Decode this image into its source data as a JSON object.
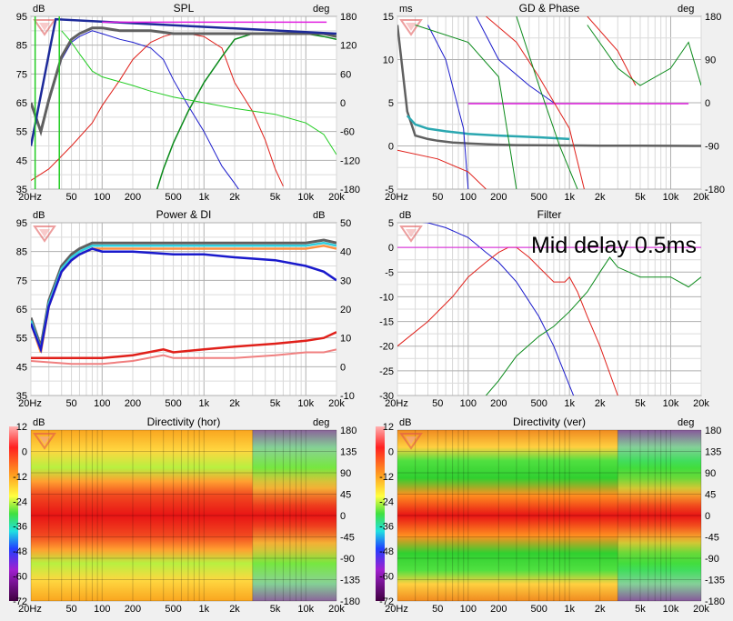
{
  "annotation": "Mid delay 0.5ms",
  "x_ticks": [
    {
      "f": 20,
      "label": "20Hz"
    },
    {
      "f": 50,
      "label": "50"
    },
    {
      "f": 100,
      "label": "100"
    },
    {
      "f": 200,
      "label": "200"
    },
    {
      "f": 500,
      "label": "500"
    },
    {
      "f": 1000,
      "label": "1k"
    },
    {
      "f": 2000,
      "label": "2k"
    },
    {
      "f": 5000,
      "label": "5k"
    },
    {
      "f": 10000,
      "label": "10k"
    },
    {
      "f": 20000,
      "label": "20k"
    }
  ],
  "colors": {
    "spl_woofer": "#1a1acc",
    "spl_mid": "#e0201a",
    "spl_tweeter": "#0a8a1a",
    "spl_sum": "#606060",
    "spl_phase": "#22cc22",
    "di": "#e0201a",
    "gd": "#2aa7b0",
    "marker": "#e020e0"
  },
  "charts": [
    {
      "id": "spl",
      "title": "SPL",
      "lunit": "dB",
      "runit": "deg",
      "x": [
        20,
        20000
      ],
      "ylim": [
        35,
        95
      ],
      "yticks": [
        "95",
        "85",
        "75",
        "65",
        "55",
        "45",
        "35"
      ],
      "rticks": [
        "180",
        "120",
        "60",
        "0",
        "-60",
        "-120",
        "-180"
      ]
    },
    {
      "id": "gd",
      "title": "GD & Phase",
      "lunit": "ms",
      "runit": "deg",
      "x": [
        20,
        20000
      ],
      "ylim": [
        -5,
        15
      ],
      "yticks": [
        "15",
        "10",
        "5",
        "0",
        "-5"
      ],
      "rticks": [
        "180",
        "90",
        "0",
        "-90",
        "-180"
      ]
    },
    {
      "id": "power",
      "title": "Power & DI",
      "lunit": "dB",
      "runit": "dB",
      "x": [
        20,
        20000
      ],
      "ylim": [
        35,
        95
      ],
      "yticks": [
        "95",
        "85",
        "75",
        "65",
        "55",
        "45",
        "35"
      ],
      "rticks": [
        "50",
        "40",
        "30",
        "20",
        "10",
        "0",
        "-10"
      ]
    },
    {
      "id": "filter",
      "title": "Filter",
      "lunit": "dB",
      "runit": "",
      "x": [
        20,
        20000
      ],
      "ylim": [
        -30,
        5
      ],
      "yticks": [
        "5",
        "0",
        "-5",
        "-10",
        "-15",
        "-20",
        "-25",
        "-30"
      ],
      "rticks": []
    },
    {
      "id": "dirh",
      "title": "Directivity (hor)",
      "lunit": "dB",
      "runit": "deg",
      "x": [
        20,
        20000
      ],
      "ylim": [
        -180,
        180
      ],
      "yticks": [],
      "rticks": [
        "180",
        "135",
        "90",
        "45",
        "0",
        "-45",
        "-90",
        "-135",
        "-180"
      ]
    },
    {
      "id": "dirv",
      "title": "Directivity (ver)",
      "lunit": "dB",
      "runit": "deg",
      "x": [
        20,
        20000
      ],
      "ylim": [
        -180,
        180
      ],
      "yticks": [],
      "rticks": [
        "180",
        "135",
        "90",
        "45",
        "0",
        "-45",
        "-90",
        "-135",
        "-180"
      ]
    }
  ],
  "colorbar": {
    "labels": [
      "12",
      "0",
      "-12",
      "-24",
      "-36",
      "-48",
      "-60",
      "-72"
    ]
  },
  "chart_data": [
    {
      "type": "line",
      "title": "SPL",
      "ylabel": "dB",
      "y2label": "deg",
      "xscale": "log",
      "xlim": [
        20,
        20000
      ],
      "ylim": [
        35,
        95
      ],
      "y2lim": [
        -180,
        180
      ],
      "series": [
        {
          "x": [
            20,
            25,
            30,
            40,
            50,
            60,
            80,
            100,
            150,
            200,
            300,
            400,
            500,
            700,
            1000,
            1500,
            2000,
            3000
          ],
          "y": [
            65,
            55,
            65,
            80,
            86,
            88,
            90,
            89,
            87,
            86,
            84,
            80,
            73,
            64,
            55,
            43,
            37,
            28
          ]
        },
        {
          "x": [
            20,
            30,
            50,
            80,
            100,
            150,
            200,
            300,
            400,
            500,
            700,
            1000,
            1500,
            2000,
            3000,
            4000,
            5000,
            6000
          ],
          "y": [
            38,
            42,
            50,
            58,
            64,
            73,
            80,
            86,
            88,
            89,
            89,
            88,
            84,
            72,
            62,
            52,
            42,
            36
          ]
        },
        {
          "x": [
            300,
            400,
            500,
            700,
            1000,
            1500,
            2000,
            3000,
            5000,
            10000,
            15000,
            20000
          ],
          "y": [
            28,
            42,
            51,
            62,
            72,
            81,
            87,
            89,
            89,
            89,
            88,
            87
          ]
        },
        {
          "x": [
            20,
            25,
            30,
            40,
            50,
            60,
            80,
            100,
            150,
            200,
            300,
            500,
            1000,
            2000,
            5000,
            10000,
            15000,
            20000
          ],
          "y": [
            65,
            55,
            66,
            81,
            87,
            89,
            91,
            91,
            90,
            90,
            90,
            89,
            89,
            89,
            89,
            89,
            89,
            88
          ]
        },
        {
          "x": [
            40,
            50,
            60,
            80,
            100,
            200,
            300,
            500,
            1000,
            2000,
            5000,
            10000,
            15000,
            20000
          ],
          "y": [
            90,
            86,
            82,
            76,
            74,
            71,
            69,
            67,
            65,
            63,
            61,
            58,
            54,
            47
          ]
        }
      ]
    },
    {
      "type": "line",
      "title": "GD & Phase",
      "ylabel": "ms",
      "y2label": "deg",
      "xscale": "log",
      "xlim": [
        20,
        20000
      ],
      "ylim": [
        -5,
        15
      ],
      "series": [
        {
          "x": [
            20,
            25,
            30,
            40,
            50,
            70,
            100,
            150,
            200,
            300,
            500,
            1000,
            2000,
            5000,
            10000,
            20000
          ],
          "y": [
            14,
            4,
            1.2,
            0.8,
            0.6,
            0.4,
            0.3,
            0.2,
            0.15,
            0.1,
            0.07,
            0.05,
            0.03,
            0.02,
            0.01,
            0
          ]
        },
        {
          "x": [
            25,
            30,
            40,
            60,
            100,
            200,
            500,
            1000
          ],
          "y": [
            3.5,
            2.5,
            2,
            1.7,
            1.4,
            1.2,
            1.0,
            0.8
          ]
        },
        {
          "x": [
            100,
            200,
            500,
            1000,
            2000,
            5000,
            10000,
            15000
          ],
          "y": [
            4.9,
            4.9,
            4.9,
            4.9,
            4.9,
            4.9,
            4.9,
            4.9
          ]
        }
      ]
    },
    {
      "type": "line",
      "title": "Power & DI",
      "ylabel": "dB",
      "y2label": "dB",
      "xscale": "log",
      "xlim": [
        20,
        20000
      ],
      "ylim": [
        35,
        95
      ],
      "y2lim": [
        -10,
        50
      ],
      "series": [
        {
          "x": [
            20,
            25,
            30,
            40,
            50,
            60,
            80,
            100,
            200,
            500,
            1000,
            2000,
            5000,
            10000,
            15000,
            20000
          ],
          "y": [
            62,
            52,
            68,
            80,
            84,
            86,
            88,
            88,
            88,
            88,
            88,
            88,
            88,
            88,
            89,
            88
          ]
        },
        {
          "x": [
            20,
            25,
            30,
            40,
            50,
            60,
            80,
            100,
            200,
            500,
            1000,
            2000,
            5000,
            10000,
            15000,
            20000
          ],
          "y": [
            60,
            51,
            66,
            78,
            82,
            84,
            86,
            85,
            85,
            84,
            84,
            83,
            82,
            80,
            78,
            75
          ]
        },
        {
          "x": [
            20,
            50,
            100,
            200,
            400,
            500,
            1000,
            2000,
            5000,
            10000,
            15000,
            20000
          ],
          "y": [
            48,
            48,
            48,
            49,
            51,
            50,
            51,
            52,
            53,
            54,
            55,
            57
          ]
        },
        {
          "x": [
            20,
            50,
            100,
            200,
            400,
            500,
            1000,
            2000,
            5000,
            10000,
            15000,
            20000
          ],
          "y": [
            47,
            46,
            46,
            47,
            49,
            48,
            48,
            48,
            49,
            50,
            50,
            51
          ]
        }
      ]
    },
    {
      "type": "line",
      "title": "Filter",
      "ylabel": "dB",
      "xscale": "log",
      "xlim": [
        20,
        20000
      ],
      "ylim": [
        -30,
        5
      ],
      "series": [
        {
          "x": [
            20,
            40,
            60,
            100,
            150,
            200,
            300,
            500,
            700,
            1000,
            1200
          ],
          "y": [
            5.5,
            5,
            4,
            2,
            -1,
            -3,
            -7,
            -14,
            -20,
            -28,
            -32
          ]
        },
        {
          "x": [
            20,
            40,
            70,
            100,
            150,
            200,
            250,
            300,
            400,
            500,
            700,
            900,
            1000,
            1200,
            1500,
            2000,
            3000
          ],
          "y": [
            -20,
            -15,
            -10,
            -6,
            -3,
            -1,
            0,
            0,
            -2,
            -4,
            -7,
            -7,
            -6,
            -9,
            -14,
            -20,
            -30
          ]
        },
        {
          "x": [
            150,
            200,
            300,
            500,
            700,
            1000,
            1500,
            2000,
            2500,
            3000,
            5000,
            10000,
            15000,
            20000
          ],
          "y": [
            -30,
            -27,
            -22,
            -18,
            -16,
            -13,
            -9,
            -5,
            -2,
            -4,
            -6,
            -6,
            -8,
            -6
          ]
        },
        {
          "x": [
            20,
            20000
          ],
          "y": [
            0,
            0
          ]
        }
      ]
    },
    {
      "type": "heatmap",
      "title": "Directivity (hor)",
      "ylabel": "dB",
      "y2label": "deg",
      "xscale": "log",
      "xlim": [
        20,
        20000
      ],
      "ylim": [
        -180,
        180
      ],
      "zlim": [
        -72,
        12
      ]
    },
    {
      "type": "heatmap",
      "title": "Directivity (ver)",
      "ylabel": "dB",
      "y2label": "deg",
      "xscale": "log",
      "xlim": [
        20,
        20000
      ],
      "ylim": [
        -180,
        180
      ],
      "zlim": [
        -72,
        12
      ]
    }
  ]
}
